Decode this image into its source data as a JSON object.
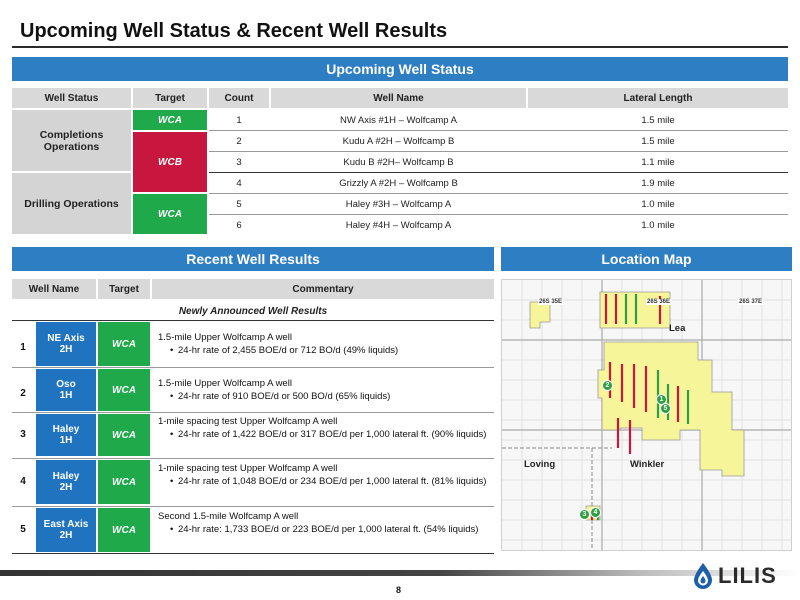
{
  "page_title": "Upcoming Well Status & Recent Well Results",
  "upcoming": {
    "bar_title": "Upcoming Well Status",
    "headers": [
      "Well Status",
      "Target",
      "Count",
      "Well Name",
      "Lateral Length"
    ],
    "status_groups": [
      "Completions Operations",
      "Drilling Operations"
    ],
    "targets": [
      "WCA",
      "WCB",
      "WCA"
    ],
    "rows": [
      {
        "count": "1",
        "name": "NW Axis #1H – Wolfcamp A",
        "length": "1.5  mile"
      },
      {
        "count": "2",
        "name": "Kudu A #2H – Wolfcamp B",
        "length": "1.5  mile"
      },
      {
        "count": "3",
        "name": "Kudu B #2H– Wolfcamp B",
        "length": "1.1 mile"
      },
      {
        "count": "4",
        "name": "Grizzly A #2H – Wolfcamp B",
        "length": "1.9 mile"
      },
      {
        "count": "5",
        "name": "Haley #3H – Wolfcamp A",
        "length": "1.0 mile"
      },
      {
        "count": "6",
        "name": "Haley #4H – Wolfcamp A",
        "length": "1.0 mile"
      }
    ]
  },
  "recent": {
    "bar_title": "Recent Well Results",
    "headers": [
      "Well Name",
      "Target",
      "Commentary"
    ],
    "subheader": "Newly Announced Well Results",
    "rows": [
      {
        "num": "1",
        "well": "NE Axis 2H",
        "target": "WCA",
        "line": "1.5-mile Upper Wolfcamp A well",
        "bullet": "24-hr rate of 2,455 BOE/d or 712 BO/d (49% liquids)"
      },
      {
        "num": "2",
        "well": "Oso 1H",
        "target": "WCA",
        "line": "1.5-mile Upper Wolfcamp A well",
        "bullet": "24-hr rate of 910 BOE/d or 500 BO/d (65% liquids)"
      },
      {
        "num": "3",
        "well": "Haley 1H",
        "target": "WCA",
        "line": "1-mile spacing test Upper Wolfcamp A well",
        "bullet": "24-hr rate of 1,422 BOE/d or 317 BOE/d per 1,000 lateral ft. (90% liquids)"
      },
      {
        "num": "4",
        "well": "Haley 2H",
        "target": "WCA",
        "line": "1-mile spacing test Upper Wolfcamp A well",
        "bullet": "24-hr rate of 1,048 BOE/d or 234 BOE/d per 1,000 lateral ft. (81% liquids)"
      },
      {
        "num": "5",
        "well": "East Axis 2H",
        "target": "WCA",
        "line": "Second 1.5-mile Wolfcamp A well",
        "bullet": "24-hr rate: 1,733 BOE/d or 223 BOE/d per 1,000 lateral ft. (54% liquids)"
      }
    ]
  },
  "map": {
    "bar_title": "Location Map",
    "townships": [
      "26S 35E",
      "26S 36E",
      "26S 37E"
    ],
    "counties": [
      "Lea",
      "Loving",
      "Winkler"
    ],
    "markers": [
      "1",
      "2",
      "3",
      "4",
      "5"
    ]
  },
  "footer": {
    "page_number": "8",
    "logo_text": "LILIS"
  }
}
